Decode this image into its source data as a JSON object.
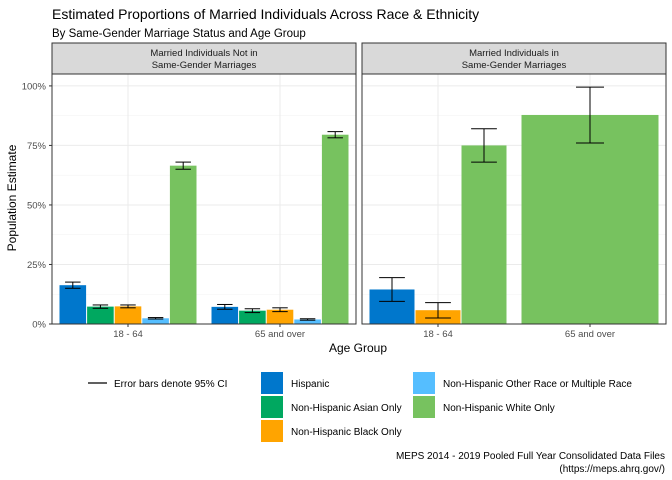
{
  "title": "Estimated Proportions of Married Individuals Across Race & Ethnicity",
  "subtitle": "By Same-Gender Marriage Status and Age Group",
  "xlabel": "Age Group",
  "ylabel": "Population Estimate",
  "legend": {
    "ci_label": "Error bars denote 95% CI"
  },
  "caption": {
    "line1": "MEPS 2014 - 2019 Pooled Full Year Consolidated Data Files",
    "line2": "(https://meps.ahrq.gov/)"
  },
  "colors": {
    "panel_strip": "#d9d9d9",
    "grid": "#ebebeb",
    "axis_text": "#4d4d4d"
  },
  "chart_data": {
    "type": "bar",
    "ylim": [
      0,
      1.05
    ],
    "yticks": [
      0,
      0.25,
      0.5,
      0.75,
      1.0
    ],
    "ytick_labels": [
      "0%",
      "25%",
      "50%",
      "75%",
      "100%"
    ],
    "categories": [
      "18 - 64",
      "65 and over"
    ],
    "series": [
      {
        "name": "Hispanic",
        "color": "#0077CC"
      },
      {
        "name": "Non-Hispanic Asian Only",
        "color": "#00A860"
      },
      {
        "name": "Non-Hispanic Black Only",
        "color": "#FFA400"
      },
      {
        "name": "Non-Hispanic Other Race or Multiple Race",
        "color": "#55BEFF"
      },
      {
        "name": "Non-Hispanic White Only",
        "color": "#77C25F"
      }
    ],
    "grid": true,
    "legend_position": "bottom",
    "panels": [
      {
        "label_line1": "Married Individuals Not in",
        "label_line2": "Same-Gender Marriages",
        "groups": [
          {
            "category": "18 - 64",
            "bars": [
              {
                "series": "Hispanic",
                "value": 0.163,
                "lo": 0.15,
                "hi": 0.176
              },
              {
                "series": "Non-Hispanic Asian Only",
                "value": 0.073,
                "lo": 0.066,
                "hi": 0.08
              },
              {
                "series": "Non-Hispanic Black Only",
                "value": 0.074,
                "lo": 0.068,
                "hi": 0.08
              },
              {
                "series": "Non-Hispanic Other Race or Multiple Race",
                "value": 0.024,
                "lo": 0.021,
                "hi": 0.027
              },
              {
                "series": "Non-Hispanic White Only",
                "value": 0.665,
                "lo": 0.65,
                "hi": 0.68
              }
            ]
          },
          {
            "category": "65 and over",
            "bars": [
              {
                "series": "Hispanic",
                "value": 0.072,
                "lo": 0.062,
                "hi": 0.082
              },
              {
                "series": "Non-Hispanic Asian Only",
                "value": 0.056,
                "lo": 0.048,
                "hi": 0.064
              },
              {
                "series": "Non-Hispanic Black Only",
                "value": 0.06,
                "lo": 0.052,
                "hi": 0.068
              },
              {
                "series": "Non-Hispanic Other Race or Multiple Race",
                "value": 0.019,
                "lo": 0.016,
                "hi": 0.022
              },
              {
                "series": "Non-Hispanic White Only",
                "value": 0.795,
                "lo": 0.782,
                "hi": 0.808
              }
            ]
          }
        ]
      },
      {
        "label_line1": "Married Individuals in",
        "label_line2": "Same-Gender Marriages",
        "groups": [
          {
            "category": "18 - 64",
            "bars": [
              {
                "series": "Hispanic",
                "value": 0.145,
                "lo": 0.095,
                "hi": 0.195
              },
              {
                "series": "Non-Hispanic Black Only",
                "value": 0.058,
                "lo": 0.025,
                "hi": 0.09
              },
              {
                "series": "Non-Hispanic White Only",
                "value": 0.75,
                "lo": 0.68,
                "hi": 0.82
              }
            ]
          },
          {
            "category": "65 and over",
            "bars": [
              {
                "series": "Non-Hispanic White Only",
                "value": 0.878,
                "lo": 0.76,
                "hi": 0.995
              }
            ]
          }
        ]
      }
    ]
  }
}
